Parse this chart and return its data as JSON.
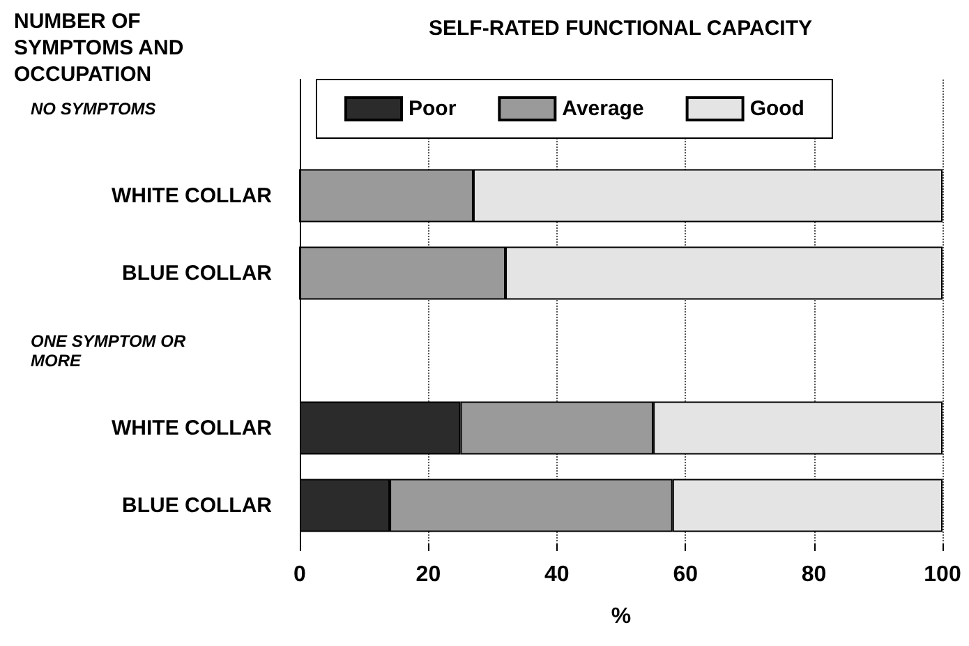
{
  "chart_data": {
    "type": "bar",
    "orientation": "horizontal",
    "stacked": true,
    "title": "SELF-RATED FUNCTIONAL CAPACITY",
    "ylabel": "NUMBER OF SYMPTOMS AND OCCUPATION",
    "xlabel": "%",
    "categories": [
      null,
      "WHITE COLLAR",
      "BLUE COLLAR",
      null,
      "WHITE COLLAR",
      "BLUE COLLAR"
    ],
    "annotations": [
      "NO SYMPTOMS",
      "ONE SYMPTOM OR MORE"
    ],
    "series": [
      {
        "name": "Poor",
        "color": "#2b2b2b",
        "values": [
          null,
          0,
          0,
          null,
          25,
          14
        ]
      },
      {
        "name": "Average",
        "color": "#9a9a9a",
        "values": [
          null,
          27,
          32,
          null,
          30,
          44
        ]
      },
      {
        "name": "Good",
        "color": "#e4e4e4",
        "values": [
          null,
          73,
          68,
          null,
          45,
          42
        ]
      }
    ],
    "xlim": [
      0,
      100
    ],
    "xticks": [
      0,
      20,
      40,
      60,
      80,
      100
    ],
    "grid": "x",
    "legend": "top"
  }
}
